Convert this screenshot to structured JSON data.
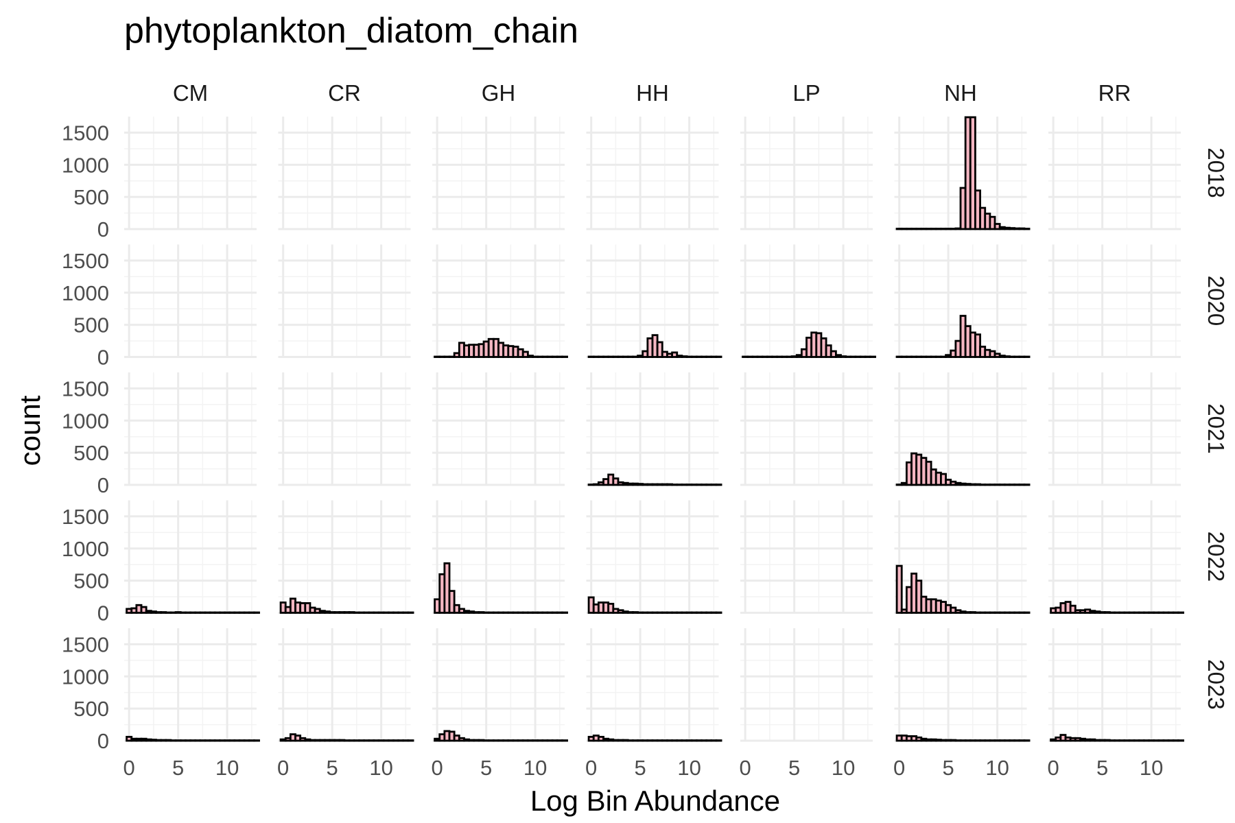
{
  "chart_data": {
    "type": "bar",
    "title": "phytoplankton_diatom_chain",
    "xlabel": "Log Bin Abundance",
    "ylabel": "count",
    "columns": [
      "CM",
      "CR",
      "GH",
      "HH",
      "LP",
      "NH",
      "RR"
    ],
    "rows": [
      "2018",
      "2020",
      "2021",
      "2022",
      "2023"
    ],
    "xlim": [
      -0.5,
      13
    ],
    "ylim": [
      0,
      1750
    ],
    "x_ticks": [
      0,
      5,
      10
    ],
    "y_ticks": [
      0,
      500,
      1000,
      1500
    ],
    "bin_width": 0.5,
    "bin_start": -0.25,
    "bar_fill": "#f4b6c2",
    "bar_outline": "#000000",
    "grid": true,
    "panels": [
      {
        "column": "NH",
        "row": "2018",
        "values": [
          5,
          5,
          5,
          5,
          5,
          5,
          5,
          5,
          5,
          5,
          5,
          5,
          10,
          640,
          1740,
          1740,
          600,
          330,
          240,
          190,
          80,
          30,
          20,
          15,
          10,
          10,
          5
        ]
      },
      {
        "column": "GH",
        "row": "2020",
        "values": [
          5,
          5,
          5,
          5,
          60,
          220,
          180,
          190,
          190,
          200,
          240,
          280,
          280,
          220,
          180,
          170,
          160,
          120,
          80,
          20,
          5,
          5,
          5,
          5,
          5,
          5,
          5
        ]
      },
      {
        "column": "HH",
        "row": "2020",
        "values": [
          5,
          5,
          5,
          5,
          5,
          5,
          5,
          5,
          5,
          5,
          20,
          90,
          290,
          340,
          230,
          80,
          50,
          70,
          20,
          10,
          5,
          5,
          5,
          5,
          5,
          5,
          5
        ]
      },
      {
        "column": "LP",
        "row": "2020",
        "values": [
          5,
          5,
          5,
          5,
          5,
          5,
          5,
          5,
          5,
          5,
          10,
          30,
          120,
          300,
          380,
          370,
          290,
          180,
          90,
          30,
          10,
          5,
          5,
          5,
          5,
          5,
          5
        ]
      },
      {
        "column": "NH",
        "row": "2020",
        "values": [
          5,
          5,
          5,
          5,
          5,
          5,
          5,
          5,
          5,
          5,
          30,
          100,
          250,
          640,
          480,
          380,
          350,
          160,
          110,
          90,
          50,
          20,
          10,
          5,
          5,
          5,
          5
        ]
      },
      {
        "column": "HH",
        "row": "2021",
        "values": [
          5,
          10,
          40,
          90,
          160,
          100,
          40,
          30,
          20,
          20,
          15,
          10,
          10,
          10,
          10,
          10,
          10,
          5,
          5,
          5,
          5,
          5,
          5,
          5,
          5,
          5,
          5
        ]
      },
      {
        "column": "NH",
        "row": "2021",
        "values": [
          5,
          30,
          350,
          490,
          470,
          420,
          360,
          240,
          190,
          170,
          80,
          50,
          30,
          20,
          15,
          10,
          10,
          5,
          5,
          5,
          5,
          5,
          5,
          5,
          5,
          5,
          5
        ]
      },
      {
        "column": "CM",
        "row": "2022",
        "values": [
          60,
          70,
          120,
          90,
          30,
          20,
          10,
          10,
          5,
          5,
          10,
          5,
          5,
          5,
          5,
          5,
          5,
          5,
          5,
          5,
          5,
          5,
          5,
          5,
          5,
          5,
          5
        ]
      },
      {
        "column": "CR",
        "row": "2022",
        "values": [
          160,
          90,
          220,
          160,
          150,
          150,
          80,
          60,
          30,
          20,
          10,
          10,
          10,
          10,
          10,
          5,
          5,
          5,
          5,
          5,
          5,
          5,
          5,
          5,
          5,
          5,
          5
        ]
      },
      {
        "column": "GH",
        "row": "2022",
        "values": [
          210,
          600,
          770,
          340,
          120,
          60,
          30,
          20,
          10,
          10,
          5,
          5,
          5,
          5,
          5,
          5,
          5,
          5,
          5,
          5,
          5,
          5,
          5,
          5,
          5,
          5,
          5
        ]
      },
      {
        "column": "HH",
        "row": "2022",
        "values": [
          240,
          130,
          160,
          160,
          140,
          60,
          40,
          20,
          10,
          10,
          5,
          5,
          5,
          5,
          5,
          5,
          5,
          5,
          5,
          5,
          5,
          5,
          5,
          5,
          5,
          5,
          5
        ]
      },
      {
        "column": "NH",
        "row": "2022",
        "values": [
          730,
          50,
          400,
          610,
          500,
          250,
          210,
          210,
          190,
          170,
          120,
          80,
          40,
          20,
          10,
          10,
          5,
          5,
          5,
          5,
          5,
          5,
          5,
          5,
          5,
          5,
          5
        ]
      },
      {
        "column": "RR",
        "row": "2022",
        "values": [
          70,
          80,
          150,
          170,
          110,
          40,
          40,
          50,
          30,
          20,
          10,
          10,
          5,
          5,
          5,
          5,
          5,
          5,
          5,
          5,
          5,
          5,
          5,
          5,
          5,
          5,
          5
        ]
      },
      {
        "column": "CM",
        "row": "2023",
        "values": [
          60,
          30,
          30,
          30,
          20,
          15,
          10,
          10,
          10,
          5,
          5,
          5,
          5,
          5,
          5,
          5,
          5,
          5,
          5,
          5,
          5,
          5,
          5,
          5,
          5,
          5,
          5
        ]
      },
      {
        "column": "CR",
        "row": "2023",
        "values": [
          20,
          40,
          100,
          80,
          40,
          20,
          10,
          10,
          10,
          10,
          10,
          10,
          10,
          5,
          5,
          5,
          5,
          5,
          5,
          5,
          5,
          5,
          5,
          5,
          5,
          5,
          5
        ]
      },
      {
        "column": "GH",
        "row": "2023",
        "values": [
          30,
          100,
          150,
          140,
          80,
          40,
          20,
          10,
          10,
          10,
          5,
          5,
          5,
          5,
          5,
          5,
          5,
          5,
          5,
          5,
          5,
          5,
          5,
          5,
          5,
          5,
          5
        ]
      },
      {
        "column": "HH",
        "row": "2023",
        "values": [
          60,
          80,
          60,
          30,
          20,
          10,
          10,
          10,
          5,
          5,
          5,
          5,
          5,
          5,
          5,
          5,
          5,
          5,
          5,
          5,
          5,
          5,
          5,
          5,
          5,
          5,
          5
        ]
      },
      {
        "column": "NH",
        "row": "2023",
        "values": [
          80,
          80,
          70,
          70,
          50,
          30,
          20,
          20,
          15,
          10,
          10,
          10,
          5,
          5,
          5,
          5,
          5,
          5,
          5,
          5,
          5,
          5,
          5,
          5,
          5,
          5,
          5
        ]
      },
      {
        "column": "RR",
        "row": "2023",
        "values": [
          20,
          50,
          90,
          50,
          40,
          40,
          30,
          20,
          20,
          10,
          10,
          10,
          5,
          5,
          5,
          5,
          5,
          5,
          5,
          5,
          5,
          5,
          5,
          5,
          5,
          5,
          5
        ]
      }
    ]
  }
}
